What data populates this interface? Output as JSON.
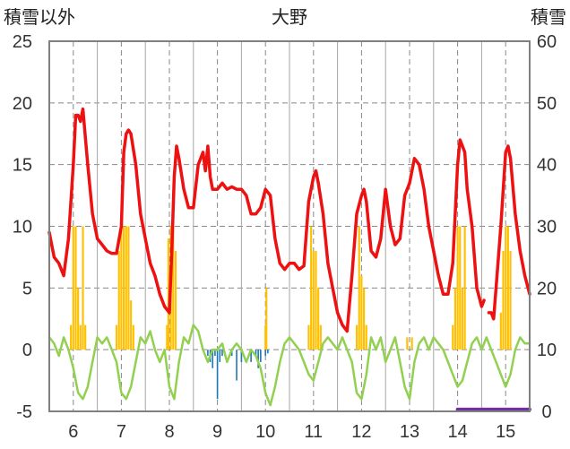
{
  "chart_data": {
    "type": "bar+line",
    "title": "大野",
    "y_left_label": "積雪以外",
    "y_right_label": "積雪",
    "y_left_range": [
      -5,
      25
    ],
    "y_left_ticks": [
      25,
      20,
      15,
      10,
      5,
      0,
      -5
    ],
    "y_right_range": [
      0,
      60
    ],
    "y_right_ticks": [
      60,
      50,
      40,
      30,
      20,
      10,
      0
    ],
    "x_range": [
      5.5,
      15.5
    ],
    "x_ticks": [
      6,
      7,
      8,
      9,
      10,
      11,
      12,
      13,
      14,
      15
    ],
    "grid": true,
    "colors": {
      "temperature": "#ee1111",
      "precipitation": "#ffc000",
      "temp_change": "#92d050",
      "snow_depth_change": "#1f77b4",
      "snow_depth": "#7030a0",
      "frame": "#808080",
      "grid": "#888888"
    },
    "series": [
      {
        "key": "temperature",
        "axis": "left",
        "kind": "line",
        "points": [
          [
            5.5,
            9.5
          ],
          [
            5.6,
            7.5
          ],
          [
            5.7,
            7
          ],
          [
            5.8,
            6
          ],
          [
            5.9,
            9
          ],
          [
            6.0,
            15
          ],
          [
            6.05,
            19
          ],
          [
            6.1,
            19
          ],
          [
            6.15,
            18.5
          ],
          [
            6.2,
            19.5
          ],
          [
            6.3,
            15
          ],
          [
            6.4,
            11
          ],
          [
            6.5,
            9
          ],
          [
            6.6,
            8.5
          ],
          [
            6.7,
            8
          ],
          [
            6.8,
            7.8
          ],
          [
            6.9,
            7.8
          ],
          [
            7.0,
            10
          ],
          [
            7.05,
            16
          ],
          [
            7.1,
            17.5
          ],
          [
            7.15,
            17.8
          ],
          [
            7.2,
            17.5
          ],
          [
            7.3,
            15
          ],
          [
            7.4,
            11
          ],
          [
            7.5,
            9
          ],
          [
            7.6,
            7
          ],
          [
            7.7,
            6
          ],
          [
            7.8,
            4.5
          ],
          [
            7.9,
            3.5
          ],
          [
            8.0,
            3
          ],
          [
            8.05,
            8
          ],
          [
            8.1,
            14
          ],
          [
            8.15,
            16.5
          ],
          [
            8.2,
            15.5
          ],
          [
            8.3,
            13
          ],
          [
            8.4,
            11.5
          ],
          [
            8.5,
            11.5
          ],
          [
            8.6,
            15
          ],
          [
            8.7,
            16
          ],
          [
            8.75,
            14.5
          ],
          [
            8.8,
            16.5
          ],
          [
            8.85,
            14
          ],
          [
            8.9,
            13
          ],
          [
            9.0,
            13
          ],
          [
            9.1,
            13.5
          ],
          [
            9.2,
            13
          ],
          [
            9.3,
            13.2
          ],
          [
            9.4,
            13
          ],
          [
            9.5,
            13
          ],
          [
            9.6,
            12.5
          ],
          [
            9.7,
            11
          ],
          [
            9.8,
            11
          ],
          [
            9.9,
            11.5
          ],
          [
            10.0,
            13
          ],
          [
            10.1,
            12.5
          ],
          [
            10.2,
            9
          ],
          [
            10.3,
            7
          ],
          [
            10.4,
            6.5
          ],
          [
            10.5,
            7
          ],
          [
            10.6,
            7
          ],
          [
            10.7,
            6.5
          ],
          [
            10.8,
            6.8
          ],
          [
            10.9,
            12
          ],
          [
            11.0,
            14
          ],
          [
            11.05,
            14.5
          ],
          [
            11.1,
            13.5
          ],
          [
            11.2,
            11
          ],
          [
            11.3,
            7
          ],
          [
            11.4,
            5
          ],
          [
            11.5,
            3
          ],
          [
            11.6,
            2
          ],
          [
            11.7,
            1.5
          ],
          [
            11.8,
            6
          ],
          [
            11.9,
            11
          ],
          [
            12.0,
            12.5
          ],
          [
            12.05,
            13
          ],
          [
            12.1,
            12
          ],
          [
            12.2,
            8
          ],
          [
            12.3,
            7.5
          ],
          [
            12.4,
            9
          ],
          [
            12.5,
            13
          ],
          [
            12.6,
            10
          ],
          [
            12.7,
            8.5
          ],
          [
            12.8,
            9
          ],
          [
            12.9,
            12.5
          ],
          [
            13.0,
            13.5
          ],
          [
            13.1,
            15.5
          ],
          [
            13.2,
            15
          ],
          [
            13.3,
            13
          ],
          [
            13.4,
            10
          ],
          [
            13.5,
            8
          ],
          [
            13.6,
            6
          ],
          [
            13.7,
            4.5
          ],
          [
            13.8,
            4.5
          ],
          [
            13.9,
            7
          ],
          [
            14.0,
            15
          ],
          [
            14.05,
            17
          ],
          [
            14.1,
            16.5
          ],
          [
            14.15,
            16
          ],
          [
            14.2,
            13
          ],
          [
            14.3,
            10
          ],
          [
            14.4,
            5
          ],
          [
            14.5,
            3.5
          ],
          [
            14.55,
            4
          ],
          [
            14.6,
            null
          ],
          [
            14.65,
            3
          ],
          [
            14.7,
            3
          ],
          [
            14.75,
            2.5
          ],
          [
            14.8,
            5
          ],
          [
            14.9,
            10
          ],
          [
            15.0,
            16
          ],
          [
            15.05,
            16.5
          ],
          [
            15.1,
            15.5
          ],
          [
            15.2,
            11
          ],
          [
            15.3,
            8
          ],
          [
            15.4,
            6
          ],
          [
            15.5,
            4.5
          ]
        ]
      },
      {
        "key": "temp_change",
        "axis": "left",
        "kind": "line",
        "points": [
          [
            5.5,
            1
          ],
          [
            5.6,
            0.5
          ],
          [
            5.7,
            -0.5
          ],
          [
            5.8,
            1
          ],
          [
            5.9,
            0
          ],
          [
            6.0,
            -1.5
          ],
          [
            6.1,
            -3.5
          ],
          [
            6.2,
            -4
          ],
          [
            6.3,
            -3
          ],
          [
            6.4,
            -1
          ],
          [
            6.5,
            1
          ],
          [
            6.6,
            0.5
          ],
          [
            6.7,
            1
          ],
          [
            6.8,
            0
          ],
          [
            6.9,
            -1
          ],
          [
            7.0,
            -3.5
          ],
          [
            7.1,
            -4
          ],
          [
            7.2,
            -3
          ],
          [
            7.3,
            -1
          ],
          [
            7.4,
            1
          ],
          [
            7.5,
            0.5
          ],
          [
            7.6,
            1.5
          ],
          [
            7.7,
            0
          ],
          [
            7.8,
            -1
          ],
          [
            7.9,
            0
          ],
          [
            8.0,
            -3
          ],
          [
            8.1,
            -4
          ],
          [
            8.2,
            -1
          ],
          [
            8.3,
            1
          ],
          [
            8.4,
            0.5
          ],
          [
            8.5,
            2
          ],
          [
            8.6,
            1.5
          ],
          [
            8.7,
            0
          ],
          [
            8.8,
            -1
          ],
          [
            8.9,
            0
          ],
          [
            9.0,
            0
          ],
          [
            9.1,
            0.5
          ],
          [
            9.2,
            -1
          ],
          [
            9.3,
            0
          ],
          [
            9.4,
            0.5
          ],
          [
            9.5,
            0
          ],
          [
            9.6,
            -1
          ],
          [
            9.7,
            0
          ],
          [
            9.8,
            -0.5
          ],
          [
            9.9,
            -1.5
          ],
          [
            10.0,
            -3.5
          ],
          [
            10.1,
            -4.5
          ],
          [
            10.2,
            -3
          ],
          [
            10.3,
            -1
          ],
          [
            10.4,
            0.5
          ],
          [
            10.5,
            1
          ],
          [
            10.6,
            0.5
          ],
          [
            10.7,
            0
          ],
          [
            10.8,
            -1
          ],
          [
            10.9,
            -2
          ],
          [
            11.0,
            -2.5
          ],
          [
            11.1,
            -1
          ],
          [
            11.2,
            0.5
          ],
          [
            11.3,
            1
          ],
          [
            11.4,
            0.5
          ],
          [
            11.5,
            0
          ],
          [
            11.6,
            1
          ],
          [
            11.7,
            0
          ],
          [
            11.8,
            -1
          ],
          [
            11.9,
            -3.5
          ],
          [
            12.0,
            -4
          ],
          [
            12.1,
            -2
          ],
          [
            12.2,
            1
          ],
          [
            12.3,
            0
          ],
          [
            12.4,
            1
          ],
          [
            12.5,
            -1
          ],
          [
            12.6,
            0
          ],
          [
            12.7,
            1
          ],
          [
            12.8,
            -1
          ],
          [
            12.9,
            -3
          ],
          [
            13.0,
            -4
          ],
          [
            13.1,
            -1
          ],
          [
            13.2,
            0.5
          ],
          [
            13.3,
            1
          ],
          [
            13.4,
            0
          ],
          [
            13.5,
            1
          ],
          [
            13.6,
            0.5
          ],
          [
            13.7,
            0
          ],
          [
            13.8,
            -1
          ],
          [
            13.9,
            -2
          ],
          [
            14.0,
            -3
          ],
          [
            14.1,
            -2.5
          ],
          [
            14.2,
            -1
          ],
          [
            14.3,
            0.5
          ],
          [
            14.4,
            1
          ],
          [
            14.5,
            0
          ],
          [
            14.6,
            1
          ],
          [
            14.7,
            0
          ],
          [
            14.8,
            -1
          ],
          [
            14.9,
            -2
          ],
          [
            15.0,
            -3
          ],
          [
            15.1,
            -2
          ],
          [
            15.2,
            0
          ],
          [
            15.3,
            1
          ],
          [
            15.4,
            0.5
          ],
          [
            15.5,
            0.5
          ]
        ]
      },
      {
        "key": "precipitation",
        "axis": "left",
        "kind": "bar",
        "width": 0.04,
        "points": [
          [
            5.95,
            2
          ],
          [
            6.0,
            10
          ],
          [
            6.05,
            10
          ],
          [
            6.1,
            5
          ],
          [
            6.15,
            2
          ],
          [
            6.2,
            10
          ],
          [
            6.25,
            2
          ],
          [
            6.9,
            2
          ],
          [
            6.95,
            8
          ],
          [
            7.0,
            10
          ],
          [
            7.05,
            10
          ],
          [
            7.1,
            10
          ],
          [
            7.15,
            10
          ],
          [
            7.2,
            4
          ],
          [
            7.25,
            2
          ],
          [
            7.95,
            2
          ],
          [
            7.98,
            9
          ],
          [
            8.03,
            10
          ],
          [
            8.08,
            10
          ],
          [
            8.13,
            8
          ],
          [
            10.0,
            2
          ],
          [
            10.02,
            5
          ],
          [
            10.9,
            2
          ],
          [
            10.95,
            10
          ],
          [
            11.0,
            8
          ],
          [
            11.05,
            8
          ],
          [
            11.1,
            5
          ],
          [
            11.15,
            2
          ],
          [
            11.9,
            2
          ],
          [
            11.95,
            10
          ],
          [
            12.0,
            6
          ],
          [
            12.05,
            5
          ],
          [
            12.1,
            2
          ],
          [
            12.95,
            1
          ],
          [
            13.05,
            1
          ],
          [
            13.9,
            2
          ],
          [
            13.95,
            5
          ],
          [
            14.0,
            10
          ],
          [
            14.05,
            10
          ],
          [
            14.1,
            5
          ],
          [
            14.15,
            10
          ],
          [
            14.9,
            3
          ],
          [
            14.95,
            8
          ],
          [
            15.0,
            10
          ],
          [
            15.05,
            10
          ],
          [
            15.1,
            8
          ]
        ]
      },
      {
        "key": "snow_depth_change",
        "axis": "left",
        "kind": "bar",
        "width": 0.03,
        "points": [
          [
            8.8,
            -0.5
          ],
          [
            8.85,
            -1
          ],
          [
            8.9,
            -1.5
          ],
          [
            8.95,
            -0.5
          ],
          [
            9.0,
            -4
          ],
          [
            9.05,
            -1
          ],
          [
            9.1,
            -0.5
          ],
          [
            9.3,
            -0.5
          ],
          [
            9.4,
            -2.5
          ],
          [
            9.5,
            -1
          ],
          [
            9.7,
            -1
          ],
          [
            9.8,
            -0.5
          ],
          [
            9.85,
            -1.5
          ],
          [
            9.9,
            -1
          ],
          [
            10.0,
            -0.5
          ],
          [
            10.05,
            -0.3
          ]
        ]
      },
      {
        "key": "snow_depth",
        "axis": "right",
        "kind": "line",
        "points": [
          [
            14.0,
            0.3
          ],
          [
            15.5,
            0.3
          ]
        ]
      }
    ]
  }
}
